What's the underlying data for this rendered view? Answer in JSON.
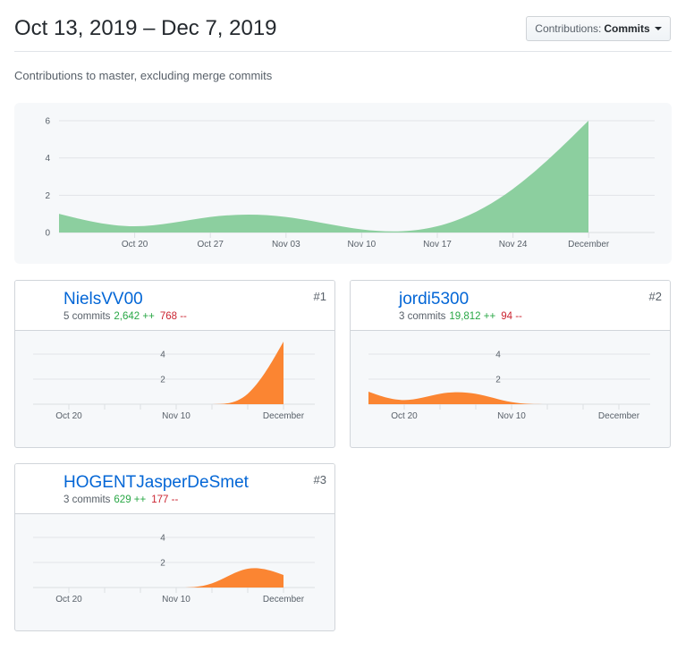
{
  "header": {
    "date_range": "Oct 13, 2019 – Dec 7, 2019",
    "dropdown_prefix": "Contributions:",
    "dropdown_selected": "Commits",
    "subtitle": "Contributions to master, excluding merge commits"
  },
  "colors": {
    "main_area": "#8ccf9f",
    "contributor_area": "#fb8532",
    "link": "#0366d6",
    "additions": "#28a745",
    "deletions": "#cb2431"
  },
  "chart_data": [
    {
      "type": "area",
      "title": "All contributors",
      "x": [
        "Oct 13",
        "Oct 20",
        "Oct 27",
        "Nov 03",
        "Nov 10",
        "Nov 17",
        "Nov 24",
        "Dec 01"
      ],
      "values": [
        1,
        0,
        1,
        1,
        0,
        0,
        2,
        6
      ],
      "x_tick_labels": [
        "Oct 20",
        "Oct 27",
        "Nov 03",
        "Nov 10",
        "Nov 17",
        "Nov 24",
        "December"
      ],
      "y_ticks": [
        "0",
        "2",
        "4",
        "6"
      ],
      "ylim": [
        0,
        6
      ],
      "grid": true,
      "xlabel": "",
      "ylabel": ""
    },
    {
      "type": "area",
      "title": "NielsVV00",
      "x": [
        "Oct 13",
        "Oct 20",
        "Oct 27",
        "Nov 03",
        "Nov 10",
        "Nov 17",
        "Nov 24",
        "Dec 01"
      ],
      "values": [
        0,
        0,
        0,
        0,
        0,
        0,
        0,
        5
      ],
      "x_tick_labels": [
        "Oct 20",
        "Nov 10",
        "December"
      ],
      "y_ticks": [
        "2",
        "4"
      ],
      "ylim": [
        0,
        6
      ],
      "grid": true
    },
    {
      "type": "area",
      "title": "jordi5300",
      "x": [
        "Oct 13",
        "Oct 20",
        "Oct 27",
        "Nov 03",
        "Nov 10",
        "Nov 17",
        "Nov 24",
        "Dec 01"
      ],
      "values": [
        1,
        0,
        1,
        1,
        0,
        0,
        0,
        0
      ],
      "x_tick_labels": [
        "Oct 20",
        "Nov 10",
        "December"
      ],
      "y_ticks": [
        "2",
        "4"
      ],
      "ylim": [
        0,
        6
      ],
      "grid": true
    },
    {
      "type": "area",
      "title": "HOGENTJasperDeSmet",
      "x": [
        "Oct 13",
        "Oct 20",
        "Oct 27",
        "Nov 03",
        "Nov 10",
        "Nov 17",
        "Nov 24",
        "Dec 01"
      ],
      "values": [
        0,
        0,
        0,
        0,
        0,
        0,
        2,
        1
      ],
      "x_tick_labels": [
        "Oct 20",
        "Nov 10",
        "December"
      ],
      "y_ticks": [
        "2",
        "4"
      ],
      "ylim": [
        0,
        6
      ],
      "grid": true
    }
  ],
  "contributors": [
    {
      "rank": "#1",
      "name": "NielsVV00",
      "commits": "5 commits",
      "additions": "2,642 ++",
      "deletions": "768 --",
      "avatar": "identicon-avatar"
    },
    {
      "rank": "#2",
      "name": "jordi5300",
      "commits": "3 commits",
      "additions": "19,812 ++",
      "deletions": "94 --",
      "avatar": "photo-avatar"
    },
    {
      "rank": "#3",
      "name": "HOGENTJasperDeSmet",
      "commits": "3 commits",
      "additions": "629 ++",
      "deletions": "177 --",
      "avatar": "character-avatar"
    }
  ]
}
